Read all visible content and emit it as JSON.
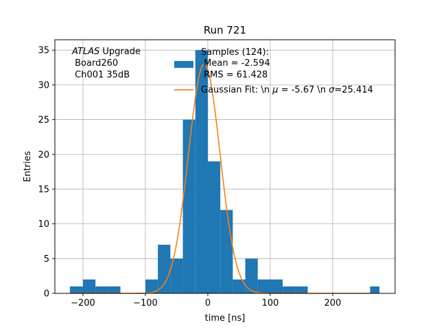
{
  "chart_data": {
    "type": "bar",
    "title": "Run 721",
    "xlabel": "time [ns]",
    "ylabel": "Entries",
    "xlim": [
      -245,
      300
    ],
    "ylim": [
      0,
      36.5
    ],
    "xticks": [
      -200,
      -100,
      0,
      100,
      200
    ],
    "yticks": [
      0,
      5,
      10,
      15,
      20,
      25,
      30,
      35
    ],
    "grid": true,
    "legend_position": "top-right",
    "bin_edges": [
      -221,
      -200,
      -180,
      -160,
      -140,
      -120,
      -100,
      -80,
      -60,
      -40,
      -20,
      0,
      20,
      40,
      60,
      80,
      100,
      120,
      140,
      160,
      180,
      200,
      220,
      240,
      260,
      275
    ],
    "counts": [
      1,
      2,
      1,
      1,
      0,
      0,
      2,
      7,
      5,
      25,
      35,
      19,
      12,
      2,
      5,
      2,
      2,
      1,
      1,
      0,
      0,
      0,
      0,
      0,
      1
    ],
    "bar_color": "#1f77b4",
    "fit": {
      "mu": -5.67,
      "sigma": 25.414,
      "amplitude": 33,
      "range": [
        -220,
        265
      ],
      "color": "#ff7f0e"
    },
    "annotation": {
      "experiment_italic": "ATLAS",
      "experiment_suffix": " Upgrade",
      "line2": " Board260",
      "line3": " Ch001 35dB"
    },
    "legend": {
      "hist_line1": "Samples (124):",
      "hist_line2": " Mean = -2.594",
      "hist_line3": " RMS = 61.428",
      "fit_label_prefix": "Gaussian Fit: \\n ",
      "fit_mu_symbol": "μ",
      "fit_label_mid": " = -5.67 \\n ",
      "fit_sigma_symbol": "σ",
      "fit_label_suffix": "=25.414"
    }
  }
}
